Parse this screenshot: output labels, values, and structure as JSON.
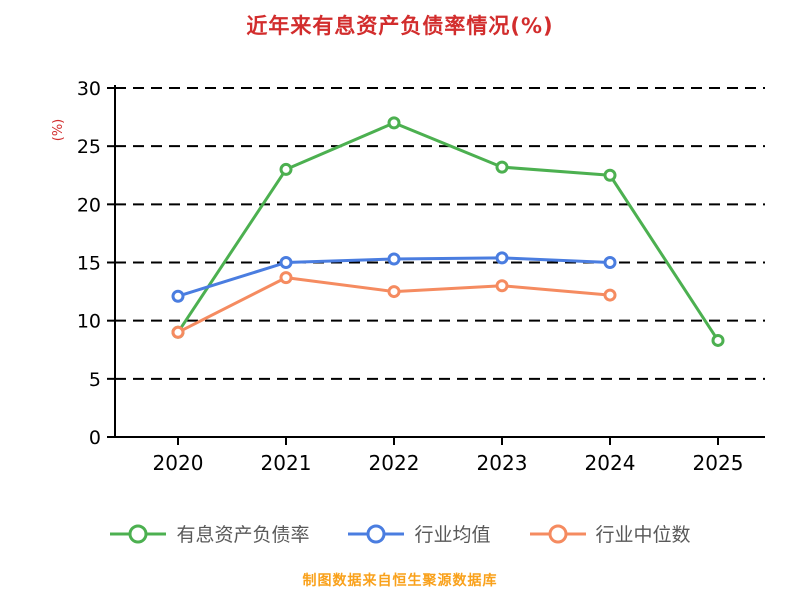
{
  "page": {
    "title": "近年来有息资产负债率情况(%)",
    "footer": "制图数据来自恒生聚源数据库"
  },
  "chart_data": {
    "type": "line",
    "title": "近年来有息资产负债率情况(%)",
    "xlabel": "",
    "ylabel": "(%)",
    "categories": [
      "2020",
      "2021",
      "2022",
      "2023",
      "2024",
      "2025"
    ],
    "ylim": [
      0,
      30
    ],
    "yticks": [
      0,
      5,
      10,
      15,
      20,
      25,
      30
    ],
    "grid": "horizontal-dashed",
    "legend_position": "bottom",
    "series": [
      {
        "name": "有息资产负债率",
        "color": "#4cb050",
        "values": [
          9.0,
          23.0,
          27.0,
          23.2,
          22.5,
          8.3
        ]
      },
      {
        "name": "行业均值",
        "color": "#4a7de0",
        "values": [
          12.1,
          15.0,
          15.3,
          15.4,
          15.0,
          null
        ]
      },
      {
        "name": "行业中位数",
        "color": "#f58b60",
        "values": [
          9.0,
          13.7,
          12.5,
          13.0,
          12.2,
          null
        ]
      }
    ],
    "colors": {
      "title": "#d22d2d",
      "ylabel": "#d22d2d",
      "footer": "#f9a11b",
      "axis": "#000000",
      "legend_text": "#595959",
      "marker_fill": "#ffffff"
    }
  }
}
